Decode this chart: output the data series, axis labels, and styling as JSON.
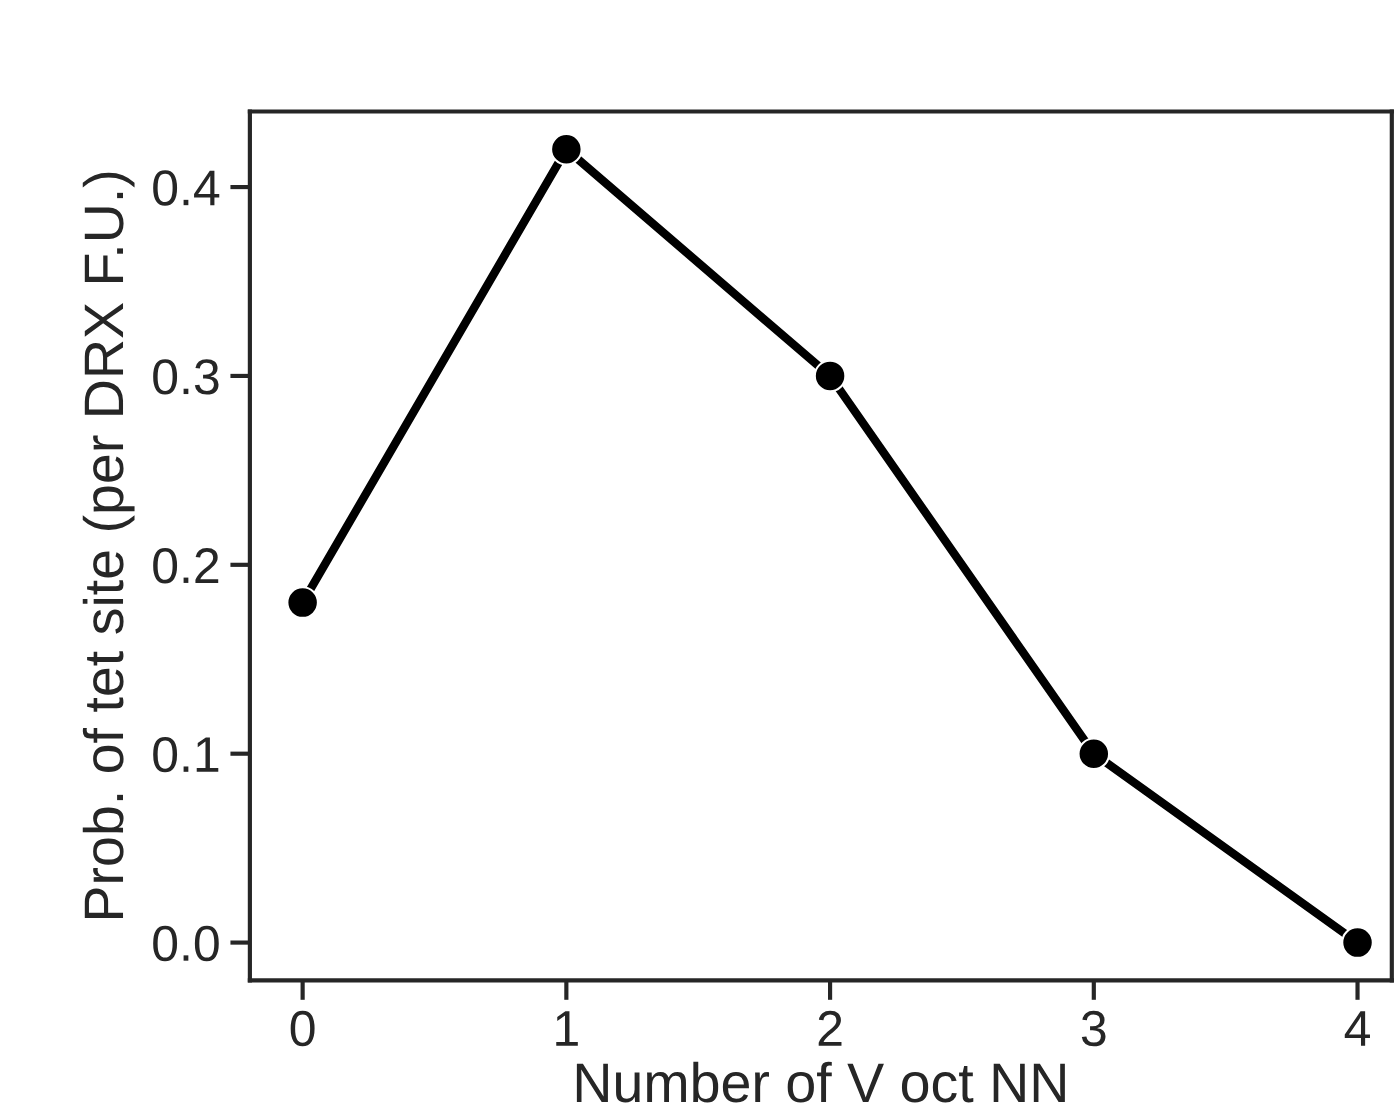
{
  "chart_data": {
    "type": "line",
    "xlabel": "Number of V oct NN",
    "ylabel": "Prob. of tet site (per DRX F.U.)",
    "x": [
      0,
      1,
      2,
      3,
      4
    ],
    "series": [
      {
        "color": "#000000",
        "values": [
          0.18,
          0.42,
          0.3,
          0.1,
          0.0
        ]
      }
    ],
    "xlim": [
      -0.2,
      4.13
    ],
    "xticks": [
      0,
      1,
      2,
      3,
      4
    ],
    "ylim": [
      -0.02,
      0.44
    ],
    "yticks": [
      {
        "value": 0,
        "label": "0.0"
      },
      0.1,
      0.2,
      0.3,
      0.4
    ],
    "marker": "circle",
    "line_style": "solid",
    "grid": false,
    "legend": false
  }
}
